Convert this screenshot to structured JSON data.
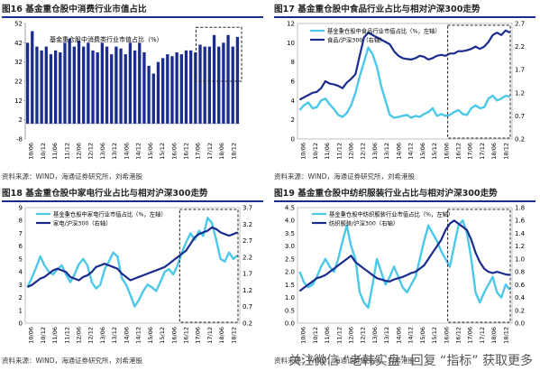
{
  "footer_text": "关注微信 “老韩实盘” 回复 “指标” 获取更多",
  "colors": {
    "navy": "#1b2c8f",
    "cyan": "#4cc8e8",
    "bar": "#1b2c8f"
  },
  "chart_data": [
    {
      "type": "bar",
      "title": "图16 基金重仓股中消费行业市值占比",
      "legend": [
        "基金重仓股中消费类行业市值占比（%）"
      ],
      "source": "资料来源：WIND，海通证券研究所，刘希港股",
      "ylim": [
        -8,
        52
      ],
      "yticks": [
        -8,
        2,
        12,
        22,
        32,
        42,
        52
      ],
      "x_tick_labels": [
        "10/06",
        "10/12",
        "11/06",
        "11/12",
        "12/06",
        "12/12",
        "13/06",
        "13/12",
        "14/06",
        "14/12",
        "15/06",
        "15/12",
        "16/06",
        "16/12",
        "17/06",
        "17/12",
        "18/06",
        "18/12"
      ],
      "values": [
        42,
        48,
        40,
        38,
        40,
        36,
        38,
        37,
        42,
        44,
        40,
        43,
        40,
        42,
        38,
        37,
        42,
        40,
        36,
        40,
        39,
        36,
        42,
        38,
        42,
        37,
        30,
        26,
        32,
        34,
        36,
        35,
        37,
        36,
        38,
        38,
        37,
        41,
        40,
        40,
        46,
        40,
        42,
        46,
        40,
        45
      ],
      "highlight_range": [
        37,
        45
      ]
    },
    {
      "type": "line",
      "title": "图17 基金重仓股中食品行业占比与相对沪深300走势",
      "source": "资料来源：WIND，海通证券研究所，刘希港股",
      "legend": [
        "基金重仓股中食品行业市值占比（%，左轴）",
        "食品/沪深300（右轴）"
      ],
      "yticks_left": [
        0.0,
        2.0,
        4.0,
        6.0,
        8.0,
        10.0,
        12.0
      ],
      "yticks_right": [
        0.2,
        0.7,
        1.2,
        1.7,
        2.2,
        2.7
      ],
      "x_tick_labels": [
        "10/06",
        "10/12",
        "11/06",
        "11/12",
        "12/06",
        "12/12",
        "13/06",
        "13/12",
        "14/06",
        "14/12",
        "15/06",
        "15/12",
        "16/06",
        "16/12",
        "17/06",
        "17/12",
        "18/06",
        "18/12"
      ],
      "series": [
        {
          "name": "基金重仓股中食品行业市值占比（%，左轴）",
          "axis": "left",
          "color": "cyan",
          "values": [
            3.0,
            3.5,
            3.8,
            3.2,
            3.3,
            4.0,
            4.2,
            3.6,
            3.1,
            2.5,
            2.3,
            2.7,
            3.5,
            4.8,
            6.5,
            8.0,
            9.5,
            8.8,
            7.5,
            5.5,
            4.0,
            2.5,
            2.2,
            2.3,
            2.4,
            2.5,
            2.2,
            2.4,
            2.3,
            2.6,
            2.8,
            3.2,
            2.4,
            2.6,
            2.4,
            2.5,
            2.8,
            3.0,
            2.6,
            2.5,
            3.2,
            3.5,
            3.2,
            3.3,
            4.2,
            4.5,
            4.0,
            4.2,
            4.5,
            4.4
          ]
        },
        {
          "name": "食品/沪深300（右轴）",
          "axis": "right",
          "color": "navy",
          "values": [
            1.05,
            1.1,
            1.15,
            1.2,
            1.22,
            1.3,
            1.45,
            1.4,
            1.38,
            1.35,
            1.3,
            1.42,
            1.5,
            1.6,
            2.0,
            2.4,
            2.5,
            2.45,
            2.4,
            2.35,
            2.3,
            2.25,
            2.1,
            2.0,
            1.95,
            1.93,
            1.92,
            1.95,
            2.0,
            1.98,
            1.92,
            1.95,
            2.0,
            2.02,
            2.0,
            2.05,
            2.05,
            2.1,
            2.1,
            2.12,
            2.15,
            2.2,
            2.15,
            2.2,
            2.3,
            2.45,
            2.5,
            2.45,
            2.55,
            2.5
          ]
        }
      ]
    },
    {
      "type": "line",
      "title": "图18 基金重仓股中家电行业占比与相对沪深300走势",
      "source": "资料来源：WIND，海通证券研究所，刘希港股",
      "legend": [
        "基金重仓股中家电行业市值占比（%，左轴）",
        "家电/沪深300（右轴）"
      ],
      "yticks_left": [
        0.0,
        1.0,
        2.0,
        3.0,
        4.0,
        5.0,
        6.0,
        7.0,
        8.0,
        9.0
      ],
      "yticks_right": [
        0.2,
        0.7,
        1.2,
        1.7,
        2.2,
        2.7,
        3.2,
        3.7
      ],
      "x_tick_labels": [
        "10/06",
        "10/12",
        "11/06",
        "11/12",
        "12/06",
        "12/12",
        "13/06",
        "13/12",
        "14/06",
        "14/12",
        "15/06",
        "15/12",
        "16/06",
        "16/12",
        "17/06",
        "17/12",
        "18/06",
        "18/12"
      ],
      "series": [
        {
          "name": "基金重仓股中家电行业市值占比（%，左轴）",
          "axis": "left",
          "color": "cyan",
          "values": [
            2.8,
            3.5,
            4.3,
            5.2,
            4.5,
            4.0,
            3.8,
            4.2,
            4.5,
            3.8,
            3.2,
            3.8,
            4.6,
            5.0,
            4.5,
            3.2,
            2.7,
            3.0,
            4.2,
            4.8,
            5.5,
            5.2,
            3.5,
            3.0,
            2.2,
            1.3,
            1.8,
            2.5,
            3.0,
            2.8,
            2.5,
            3.2,
            4.0,
            4.2,
            3.8,
            4.5,
            5.5,
            6.3,
            7.0,
            6.5,
            7.2,
            6.8,
            8.2,
            7.8,
            6.5,
            5.0,
            4.8,
            5.5,
            5.0,
            5.3
          ]
        },
        {
          "name": "家电/沪深300（右轴）",
          "axis": "right",
          "color": "navy",
          "values": [
            1.3,
            1.35,
            1.45,
            1.55,
            1.6,
            1.7,
            1.8,
            1.85,
            1.8,
            1.75,
            1.6,
            1.55,
            1.5,
            1.6,
            1.65,
            1.75,
            1.9,
            1.95,
            2.0,
            1.95,
            1.9,
            1.85,
            1.7,
            1.6,
            1.5,
            1.55,
            1.6,
            1.65,
            1.7,
            1.75,
            1.8,
            1.85,
            1.9,
            2.0,
            2.1,
            2.2,
            2.3,
            2.4,
            2.6,
            2.8,
            2.9,
            2.95,
            3.0,
            3.1,
            3.05,
            2.95,
            2.9,
            2.85,
            2.9,
            2.95
          ]
        }
      ]
    },
    {
      "type": "line",
      "title": "图19 基金重仓股中纺织服装行业占比与相对沪深300走势",
      "source": "资料来源：WIND，海通证券研究所，刘希港股",
      "legend": [
        "基金重仓股中纺织服装行业市值占比（%，左轴）",
        "纺织服装/沪深300（右轴）"
      ],
      "yticks_left": [
        0.0,
        0.5,
        1.0,
        1.5,
        2.0,
        2.5,
        3.0,
        3.5,
        4.0,
        4.5
      ],
      "yticks_right": [
        0.0,
        0.2,
        0.4,
        0.6,
        0.8,
        1.0,
        1.2,
        1.4,
        1.6,
        1.8
      ],
      "x_tick_labels": [
        "10/06",
        "10/12",
        "11/06",
        "11/12",
        "12/06",
        "12/12",
        "13/06",
        "13/12",
        "14/06",
        "14/12",
        "15/06",
        "15/12",
        "16/06",
        "16/12",
        "17/06",
        "17/12",
        "18/06",
        "18/12"
      ],
      "series": [
        {
          "name": "基金重仓股中纺织服装行业市值占比（%，左轴）",
          "axis": "left",
          "color": "cyan",
          "values": [
            2.0,
            1.6,
            1.4,
            1.5,
            1.8,
            2.2,
            2.5,
            2.2,
            2.0,
            2.5,
            3.2,
            3.8,
            3.0,
            2.5,
            1.2,
            0.8,
            0.6,
            1.5,
            2.5,
            2.0,
            1.5,
            1.8,
            2.2,
            1.8,
            1.4,
            1.2,
            1.5,
            1.8,
            2.5,
            3.2,
            3.8,
            3.5,
            3.2,
            2.8,
            2.5,
            2.2,
            3.0,
            3.8,
            4.0,
            3.5,
            2.5,
            1.2,
            0.8,
            1.2,
            1.5,
            1.8,
            1.2,
            1.0,
            1.5,
            1.3
          ]
        },
        {
          "name": "纺织服装/沪深300（右轴）",
          "axis": "right",
          "color": "navy",
          "values": [
            0.5,
            0.55,
            0.6,
            0.65,
            0.7,
            0.72,
            0.75,
            0.8,
            0.85,
            0.9,
            0.95,
            1.0,
            1.05,
            0.95,
            0.9,
            0.85,
            0.8,
            0.75,
            0.7,
            0.68,
            0.66,
            0.65,
            0.68,
            0.7,
            0.72,
            0.75,
            0.78,
            0.8,
            0.85,
            0.9,
            1.0,
            1.1,
            1.2,
            1.3,
            1.45,
            1.55,
            1.6,
            1.55,
            1.5,
            1.45,
            1.3,
            1.1,
            0.95,
            0.85,
            0.8,
            0.78,
            0.8,
            0.78,
            0.76,
            0.75
          ]
        }
      ]
    }
  ]
}
